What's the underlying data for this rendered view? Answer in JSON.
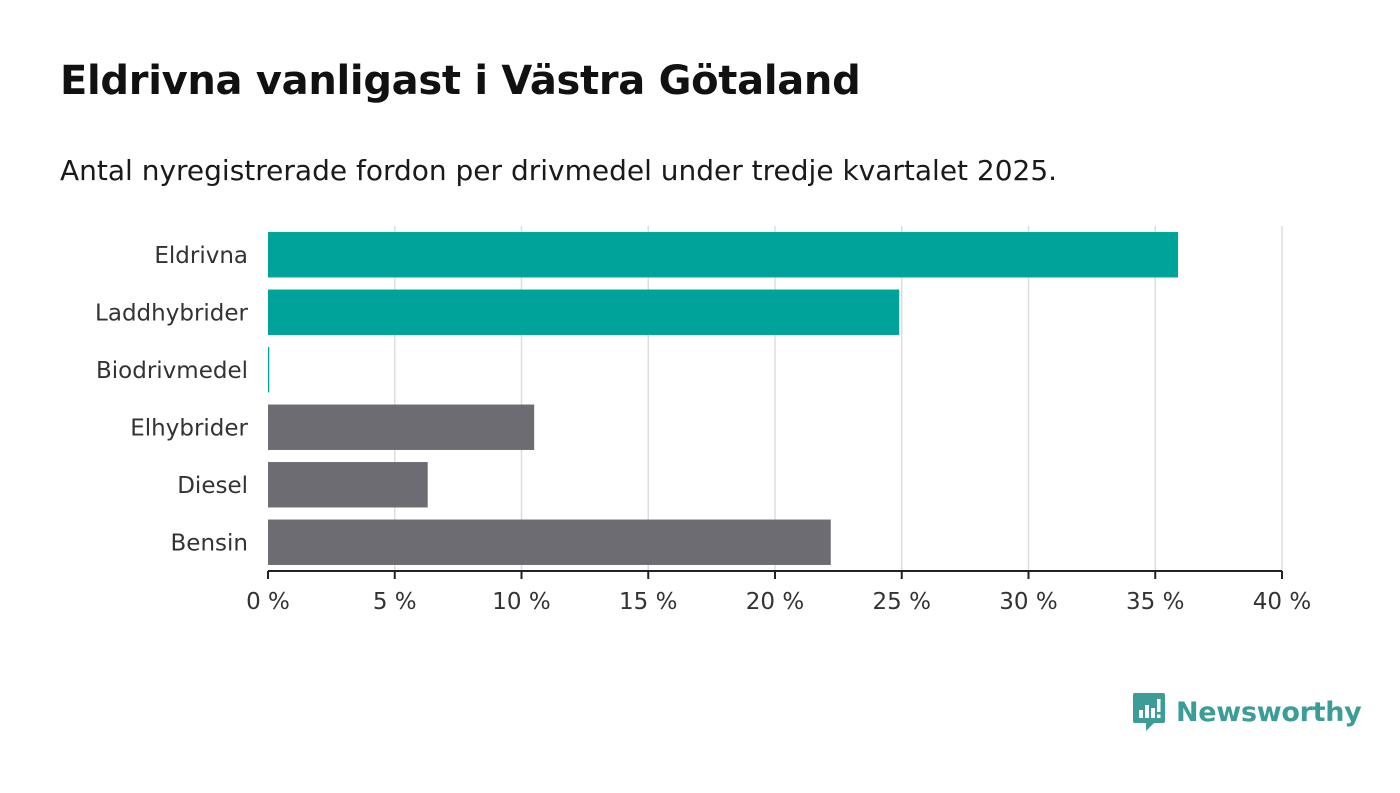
{
  "title": "Eldrivna vanligast i Västra Götaland",
  "subtitle": "Antal nyregistrerade fordon per drivmedel under tredje kvartalet 2025.",
  "brand": {
    "name": "Newsworthy",
    "icon": "bar-chart-speech-bubble-icon"
  },
  "colors": {
    "highlight": "#00a39a",
    "default": "#6d6c73",
    "grid": "#dddddd",
    "axis": "#222222"
  },
  "chart_data": {
    "type": "bar",
    "orientation": "horizontal",
    "title": "Eldrivna vanligast i Västra Götaland",
    "subtitle": "Antal nyregistrerade fordon per drivmedel under tredje kvartalet 2025.",
    "xlabel": "",
    "ylabel": "",
    "unit": "%",
    "categories": [
      "Eldrivna",
      "Laddhybrider",
      "Biodrivmedel",
      "Elhybrider",
      "Diesel",
      "Bensin"
    ],
    "values": [
      35.9,
      24.9,
      0.05,
      10.5,
      6.3,
      22.2
    ],
    "highlighted": [
      true,
      true,
      true,
      false,
      false,
      false
    ],
    "xlim": [
      0,
      40
    ],
    "xticks": [
      0,
      5,
      10,
      15,
      20,
      25,
      30,
      35,
      40
    ],
    "xtick_labels": [
      "0 %",
      "5 %",
      "10 %",
      "15 %",
      "20 %",
      "25 %",
      "30 %",
      "35 %",
      "40 %"
    ],
    "grid": true
  }
}
